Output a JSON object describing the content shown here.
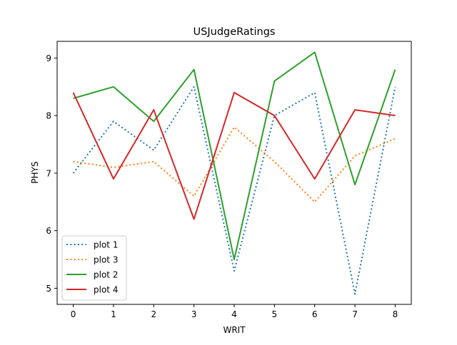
{
  "chart_data": {
    "type": "line",
    "title": "USJudgeRatings",
    "xlabel": "WRIT",
    "ylabel": "PHYS",
    "x": [
      0,
      1,
      2,
      3,
      4,
      5,
      6,
      7,
      8
    ],
    "xticks": [
      "0",
      "1",
      "2",
      "3",
      "4",
      "5",
      "6",
      "7",
      "8"
    ],
    "yticks": [
      "5",
      "6",
      "7",
      "8",
      "9"
    ],
    "xlim": [
      -0.4,
      8.4
    ],
    "ylim": [
      4.72,
      9.29
    ],
    "grid": false,
    "legend_position": "lower-left",
    "series": [
      {
        "name": "plot 1",
        "style": "dotted",
        "color": "#1f77b4",
        "values": [
          7.0,
          7.9,
          7.4,
          8.5,
          5.3,
          8.0,
          8.4,
          4.9,
          8.5
        ]
      },
      {
        "name": "plot 3",
        "style": "dotted",
        "color": "#ff7f0e",
        "values": [
          7.2,
          7.1,
          7.2,
          6.6,
          7.8,
          7.2,
          6.5,
          7.3,
          7.6
        ]
      },
      {
        "name": "plot 2",
        "style": "solid",
        "color": "#2ca02c",
        "values": [
          8.3,
          8.5,
          7.9,
          8.8,
          5.5,
          8.6,
          9.1,
          6.8,
          8.8
        ]
      },
      {
        "name": "plot 4",
        "style": "solid",
        "color": "#d62728",
        "values": [
          8.4,
          6.9,
          8.1,
          6.2,
          8.4,
          8.0,
          6.9,
          8.1,
          8.0
        ]
      }
    ]
  }
}
